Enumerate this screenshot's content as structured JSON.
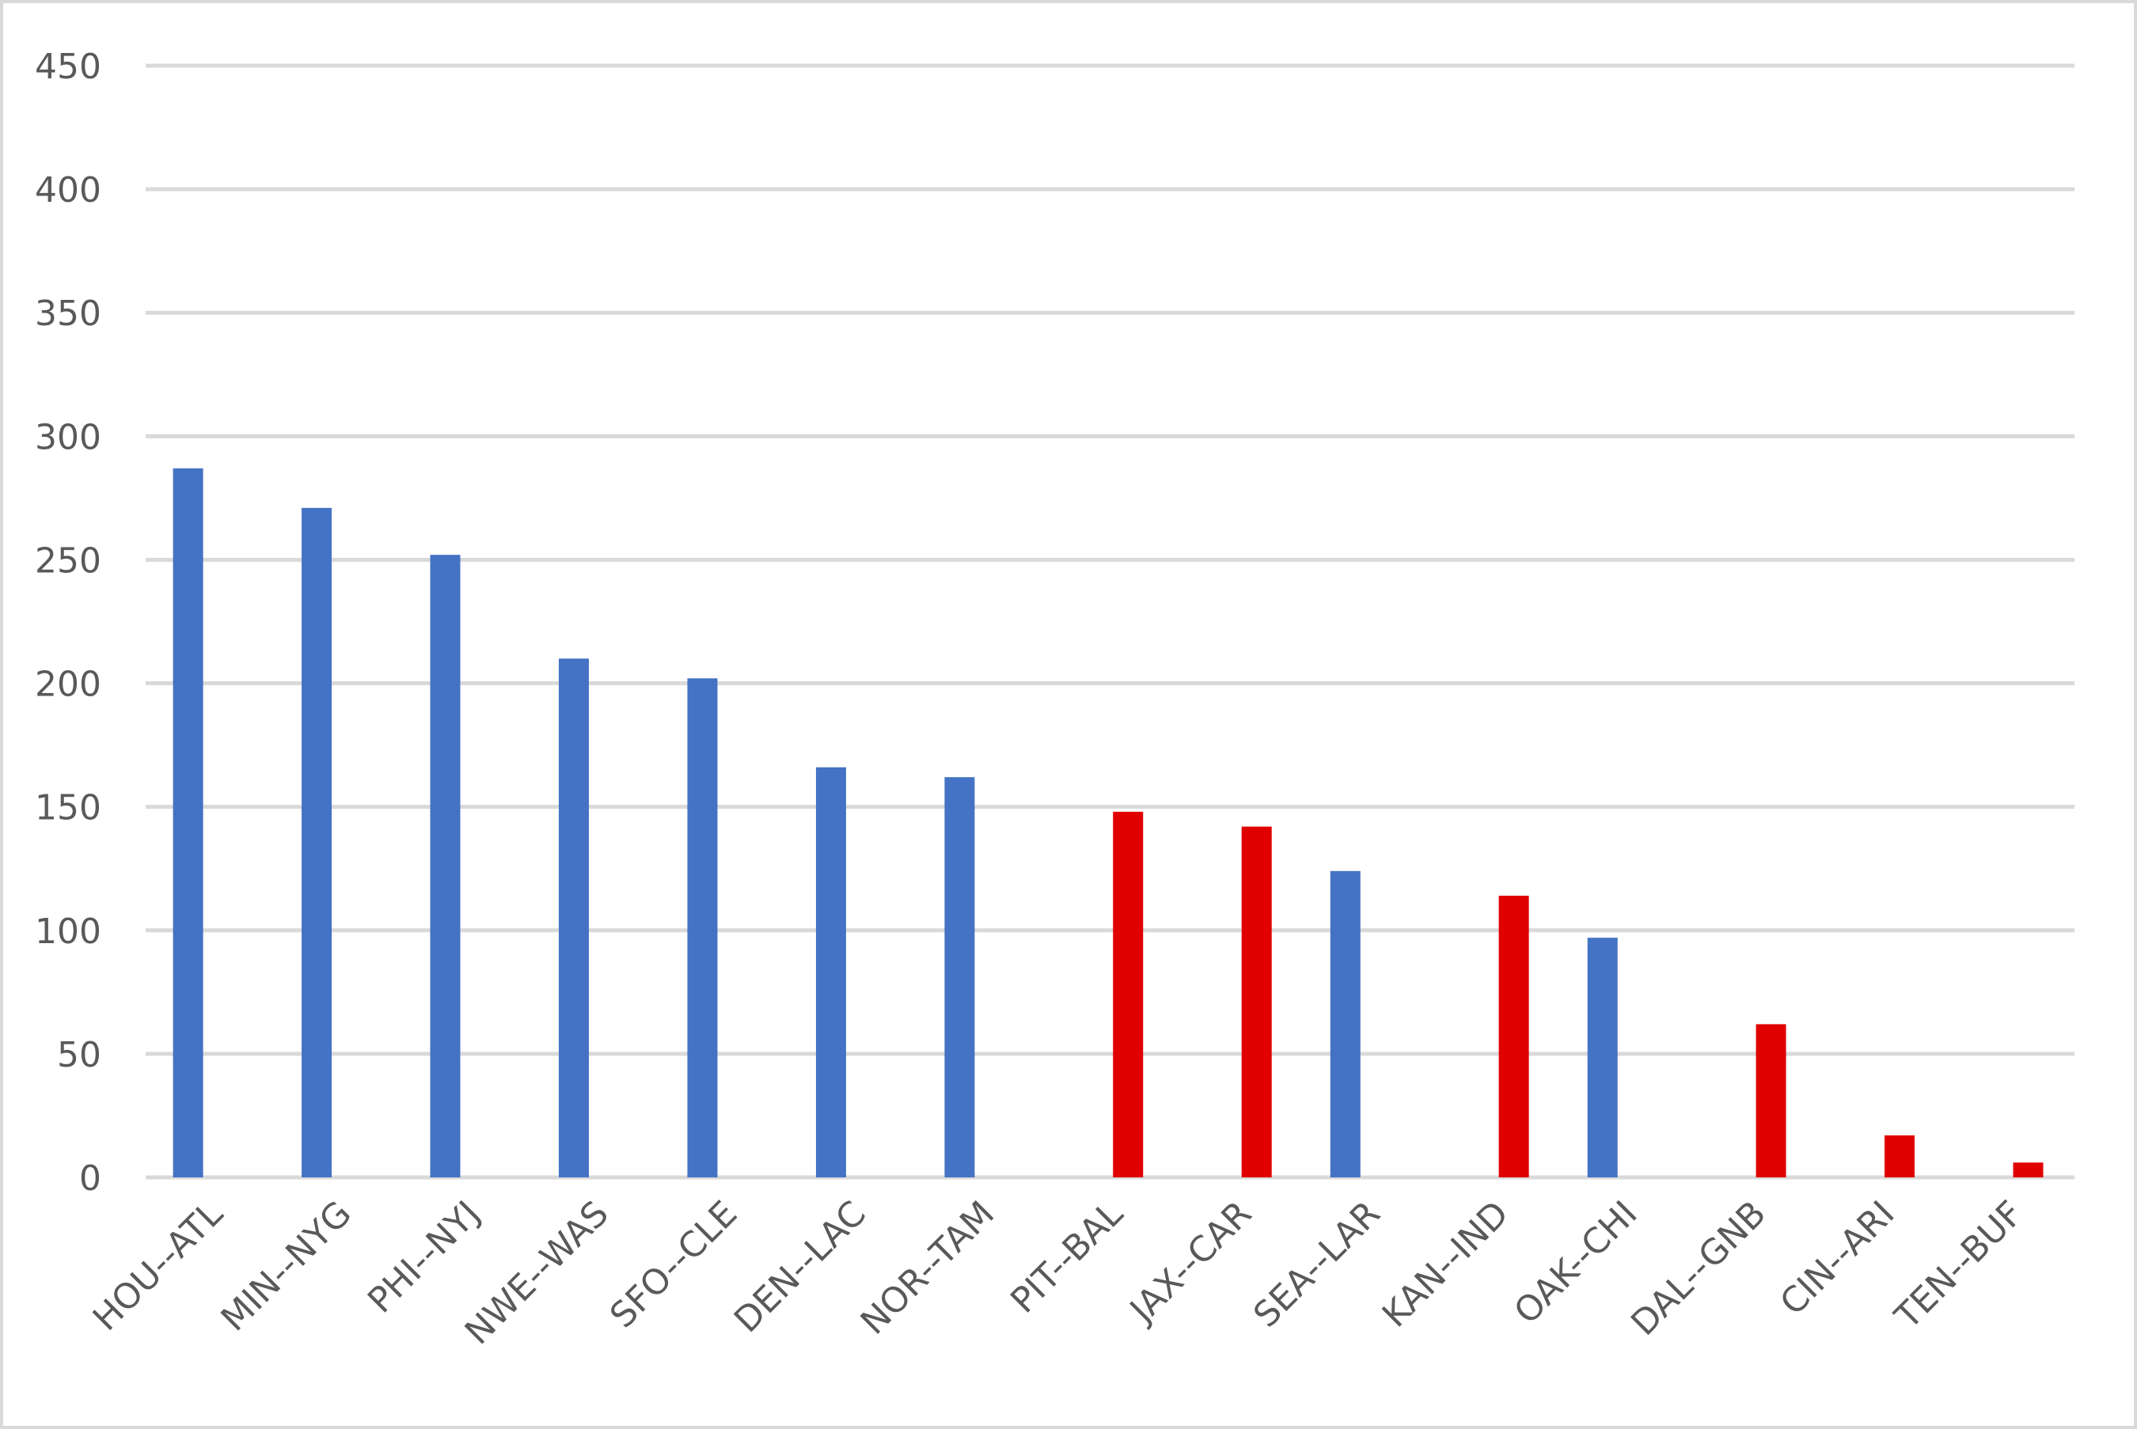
{
  "chart_data": {
    "type": "bar",
    "categories": [
      "HOU--ATL",
      "MIN--NYG",
      "PHI--NYJ",
      "NWE--WAS",
      "SFO--CLE",
      "DEN--LAC",
      "NOR--TAM",
      "PIT--BAL",
      "JAX--CAR",
      "SEA--LAR",
      "KAN--IND",
      "OAK--CHI",
      "DAL--GNB",
      "CIN--ARI",
      "TEN--BUF"
    ],
    "series": [
      {
        "color": "#4472c4",
        "values": [
          287,
          271,
          252,
          210,
          202,
          166,
          162,
          null,
          null,
          124,
          null,
          97,
          null,
          null,
          null
        ]
      },
      {
        "color": "#e00000",
        "values": [
          null,
          null,
          null,
          null,
          null,
          null,
          null,
          148,
          142,
          null,
          114,
          null,
          62,
          17,
          6
        ]
      }
    ],
    "ylim": [
      0,
      450
    ],
    "yticks": [
      0,
      50,
      100,
      150,
      200,
      250,
      300,
      350,
      400,
      450
    ],
    "grid": true
  }
}
